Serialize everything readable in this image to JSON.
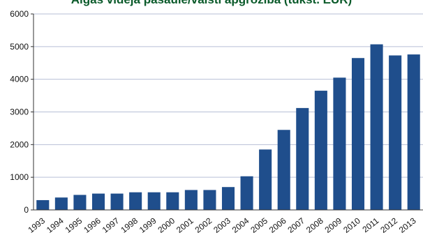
{
  "chart_data": {
    "type": "bar",
    "title": "Algas vidējā pasaulē/valstī apgrozība (tūkst. EUR)",
    "xlabel": "",
    "ylabel": "",
    "categories": [
      "1993",
      "1994",
      "1995",
      "1996",
      "1997",
      "1998",
      "1999",
      "2000",
      "2001",
      "2002",
      "2003",
      "2004",
      "2005",
      "2006",
      "2007",
      "2008",
      "2009",
      "2010",
      "2011",
      "2012",
      "2013"
    ],
    "values": [
      300,
      380,
      460,
      500,
      500,
      540,
      540,
      540,
      610,
      610,
      700,
      1030,
      1850,
      2450,
      3120,
      3650,
      4050,
      4650,
      5070,
      4730,
      4760
    ],
    "ylim": [
      0,
      6000
    ],
    "yticks": [
      0,
      1000,
      2000,
      3000,
      4000,
      5000,
      6000
    ],
    "grid": true,
    "legend": "none",
    "colors": {
      "bar": "#1f4e8c",
      "grid": "#b7bfd6",
      "axis": "#333333",
      "title": "#0a5a2a"
    }
  }
}
